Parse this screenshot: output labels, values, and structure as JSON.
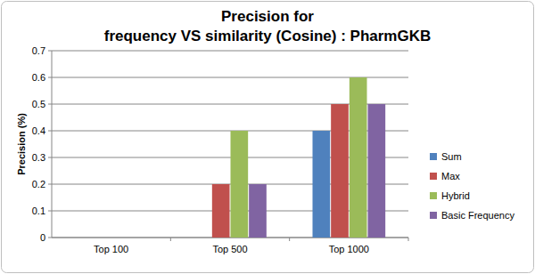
{
  "chart_data": {
    "type": "bar",
    "title": "Precision for\nfrequency VS similarity (Cosine) : PharmGKB",
    "y_label": "Precision (%)",
    "categories": [
      "Top 100",
      "Top 500",
      "Top 1000"
    ],
    "series": [
      {
        "name": "Sum",
        "color": "#4f81bd",
        "values": [
          0,
          0,
          0.4
        ]
      },
      {
        "name": "Max",
        "color": "#c0504d",
        "values": [
          0,
          0.2,
          0.5
        ]
      },
      {
        "name": "Hybrid",
        "color": "#9bbb59",
        "values": [
          0,
          0.4,
          0.6
        ]
      },
      {
        "name": "Basic Frequency",
        "color": "#8064a2",
        "values": [
          0,
          0.2,
          0.5
        ]
      }
    ],
    "ylim": [
      0,
      0.7
    ],
    "yticks": [
      0,
      0.1,
      0.2,
      0.3,
      0.4,
      0.5,
      0.6,
      0.7
    ],
    "grid": true,
    "legend": "right"
  }
}
